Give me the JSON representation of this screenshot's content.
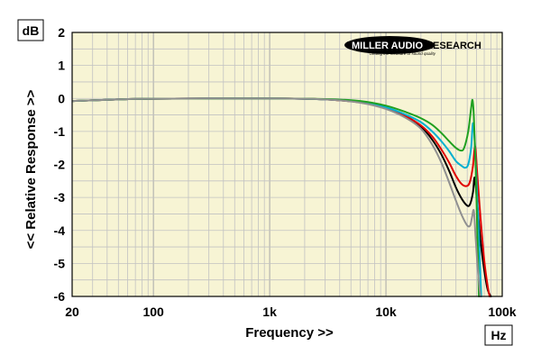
{
  "chart_data": {
    "type": "line",
    "title": "",
    "xlabel": "Frequency >>",
    "ylabel": "<< Relative Response >>",
    "x_unit": "Hz",
    "y_unit": "dB",
    "x_scale": "log",
    "xlim": [
      20,
      100000
    ],
    "ylim": [
      -6,
      2
    ],
    "x_ticks": [
      {
        "value": 20,
        "label": "20"
      },
      {
        "value": 100,
        "label": "100"
      },
      {
        "value": 1000,
        "label": "1k"
      },
      {
        "value": 10000,
        "label": "10k"
      },
      {
        "value": 100000,
        "label": "100k"
      }
    ],
    "y_ticks": [
      {
        "value": 2,
        "label": "2"
      },
      {
        "value": 1,
        "label": "1"
      },
      {
        "value": 0,
        "label": "0"
      },
      {
        "value": -1,
        "label": "-1"
      },
      {
        "value": -2,
        "label": "-2"
      },
      {
        "value": -3,
        "label": "-3"
      },
      {
        "value": -4,
        "label": "-4"
      },
      {
        "value": -5,
        "label": "-5"
      },
      {
        "value": -6,
        "label": "-6"
      }
    ],
    "grid": true,
    "background_color": "#f7f4d4",
    "grid_color": "#c2c2c2",
    "logo": {
      "name": "MILLER AUDIO RESEARCH",
      "tagline": "Getting the measure of sound quality"
    },
    "series": [
      {
        "color": "#000000",
        "points": [
          [
            20,
            -0.08
          ],
          [
            50,
            -0.03
          ],
          [
            100,
            -0.01
          ],
          [
            1000,
            0
          ],
          [
            3000,
            -0.03
          ],
          [
            6000,
            -0.12
          ],
          [
            10000,
            -0.3
          ],
          [
            15000,
            -0.55
          ],
          [
            20000,
            -0.85
          ],
          [
            25000,
            -1.25
          ],
          [
            30000,
            -1.7
          ],
          [
            35000,
            -2.2
          ],
          [
            40000,
            -2.7
          ],
          [
            45000,
            -3.05
          ],
          [
            50000,
            -3.25
          ],
          [
            53000,
            -3.2
          ],
          [
            56000,
            -2.85
          ],
          [
            58000,
            -2.4
          ],
          [
            61000,
            -3.2
          ],
          [
            65000,
            -4.3
          ],
          [
            70000,
            -5.2
          ],
          [
            75000,
            -5.8
          ],
          [
            80000,
            -6.0
          ]
        ]
      },
      {
        "color": "#e00000",
        "points": [
          [
            20,
            -0.08
          ],
          [
            50,
            -0.03
          ],
          [
            100,
            -0.01
          ],
          [
            1000,
            0
          ],
          [
            3000,
            -0.03
          ],
          [
            6000,
            -0.12
          ],
          [
            10000,
            -0.3
          ],
          [
            15000,
            -0.55
          ],
          [
            20000,
            -0.82
          ],
          [
            25000,
            -1.15
          ],
          [
            30000,
            -1.55
          ],
          [
            35000,
            -1.95
          ],
          [
            40000,
            -2.35
          ],
          [
            45000,
            -2.6
          ],
          [
            50000,
            -2.65
          ],
          [
            53000,
            -2.5
          ],
          [
            56000,
            -2.05
          ],
          [
            58500,
            -1.45
          ],
          [
            61000,
            -2.3
          ],
          [
            65000,
            -3.6
          ],
          [
            70000,
            -4.9
          ],
          [
            75000,
            -5.7
          ],
          [
            78000,
            -6.0
          ]
        ]
      },
      {
        "color": "#00b0d0",
        "points": [
          [
            20,
            -0.08
          ],
          [
            50,
            -0.03
          ],
          [
            100,
            -0.01
          ],
          [
            1000,
            0
          ],
          [
            3000,
            -0.03
          ],
          [
            6000,
            -0.1
          ],
          [
            10000,
            -0.27
          ],
          [
            15000,
            -0.5
          ],
          [
            20000,
            -0.72
          ],
          [
            25000,
            -1.0
          ],
          [
            30000,
            -1.3
          ],
          [
            35000,
            -1.6
          ],
          [
            40000,
            -1.9
          ],
          [
            45000,
            -2.05
          ],
          [
            48000,
            -2.1
          ],
          [
            51000,
            -2.0
          ],
          [
            54000,
            -1.5
          ],
          [
            56000,
            -0.75
          ],
          [
            58000,
            -1.3
          ],
          [
            61000,
            -3.0
          ],
          [
            64000,
            -4.8
          ],
          [
            66000,
            -6.0
          ]
        ]
      },
      {
        "color": "#20a020",
        "points": [
          [
            20,
            -0.08
          ],
          [
            50,
            -0.03
          ],
          [
            100,
            -0.01
          ],
          [
            1000,
            0
          ],
          [
            3000,
            -0.02
          ],
          [
            6000,
            -0.08
          ],
          [
            10000,
            -0.22
          ],
          [
            15000,
            -0.42
          ],
          [
            20000,
            -0.6
          ],
          [
            25000,
            -0.8
          ],
          [
            30000,
            -1.05
          ],
          [
            35000,
            -1.3
          ],
          [
            40000,
            -1.5
          ],
          [
            44000,
            -1.58
          ],
          [
            47000,
            -1.5
          ],
          [
            51000,
            -1.0
          ],
          [
            54000,
            -0.3
          ],
          [
            55500,
            -0.05
          ],
          [
            57000,
            -0.55
          ],
          [
            59000,
            -2.0
          ],
          [
            61000,
            -4.0
          ],
          [
            63000,
            -6.0
          ]
        ]
      },
      {
        "color": "#909090",
        "points": [
          [
            20,
            -0.08
          ],
          [
            50,
            -0.03
          ],
          [
            100,
            -0.01
          ],
          [
            1000,
            0
          ],
          [
            3000,
            -0.03
          ],
          [
            6000,
            -0.13
          ],
          [
            10000,
            -0.32
          ],
          [
            15000,
            -0.6
          ],
          [
            20000,
            -0.92
          ],
          [
            25000,
            -1.4
          ],
          [
            30000,
            -1.95
          ],
          [
            35000,
            -2.55
          ],
          [
            40000,
            -3.1
          ],
          [
            45000,
            -3.55
          ],
          [
            50000,
            -3.85
          ],
          [
            53000,
            -3.85
          ],
          [
            55000,
            -3.6
          ],
          [
            57000,
            -3.4
          ],
          [
            59000,
            -4.2
          ],
          [
            62000,
            -5.3
          ],
          [
            65000,
            -6.0
          ]
        ]
      }
    ]
  }
}
